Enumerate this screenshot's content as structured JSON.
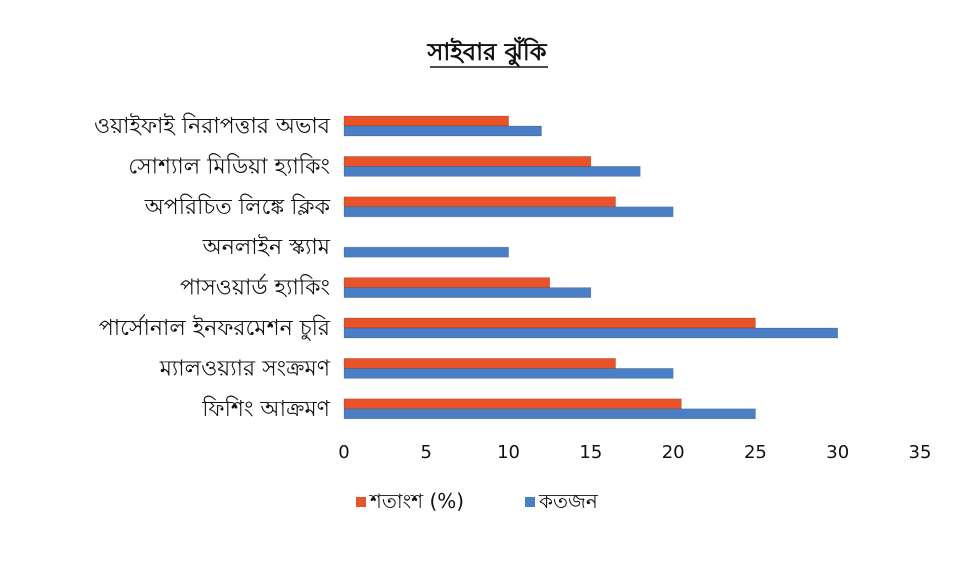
{
  "chart_data": {
    "type": "bar",
    "orientation": "horizontal",
    "title": "সাইবার ঝুঁকি",
    "categories": [
      "ওয়াইফাই নিরাপত্তার অভাব",
      "সোশ্যাল মিডিয়া হ্যাকিং",
      "অপরিচিত লিঙ্কে ক্লিক",
      "অনলাইন স্ক্যাম",
      "পাসওয়ার্ড হ্যাকিং",
      "পার্সোনাল ইনফরমেশন চুরি",
      "ম্যালওয়্যার সংক্রমণ",
      "ফিশিং আক্রমণ"
    ],
    "series": [
      {
        "name": "শতাংশ (%)",
        "color": "#e8532a",
        "values": [
          10,
          15,
          16.5,
          0,
          12.5,
          25,
          16.5,
          20.5
        ]
      },
      {
        "name": "কতজন",
        "color": "#4a7fc6",
        "values": [
          12,
          18,
          20,
          10,
          15,
          30,
          20,
          25
        ]
      }
    ],
    "xlim": [
      0,
      35
    ],
    "xticks": [
      "0",
      "5",
      "10",
      "15",
      "20",
      "25",
      "30",
      "35"
    ],
    "grid": false,
    "legend_position": "bottom"
  }
}
